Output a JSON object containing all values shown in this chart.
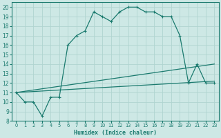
{
  "xlabel": "Humidex (Indice chaleur)",
  "bg_color": "#cde8e5",
  "line_color": "#1a7a6e",
  "grid_color": "#b0d4d0",
  "xlim": [
    0,
    23
  ],
  "ylim": [
    8,
    20.5
  ],
  "xticks": [
    0,
    1,
    2,
    3,
    4,
    5,
    6,
    7,
    8,
    9,
    10,
    11,
    12,
    13,
    14,
    15,
    16,
    17,
    18,
    19,
    20,
    21,
    22,
    23
  ],
  "yticks": [
    8,
    9,
    10,
    11,
    12,
    13,
    14,
    15,
    16,
    17,
    18,
    19,
    20
  ],
  "series_main": {
    "x": [
      0,
      1,
      2,
      3,
      4,
      5,
      6,
      7,
      8,
      9,
      10,
      11,
      12,
      13,
      14,
      15,
      16,
      17,
      18,
      19,
      20,
      21,
      22,
      23
    ],
    "y": [
      11,
      10,
      10,
      8.5,
      10.5,
      10.5,
      16,
      17,
      17.5,
      19.5,
      19,
      18.5,
      19.5,
      20,
      20,
      19.5,
      19.5,
      19,
      19,
      17,
      12,
      14,
      12,
      12
    ]
  },
  "series_line1": {
    "x": [
      0,
      23
    ],
    "y": [
      11,
      14
    ]
  },
  "series_line2": {
    "x": [
      0,
      23
    ],
    "y": [
      11,
      12.2
    ]
  }
}
